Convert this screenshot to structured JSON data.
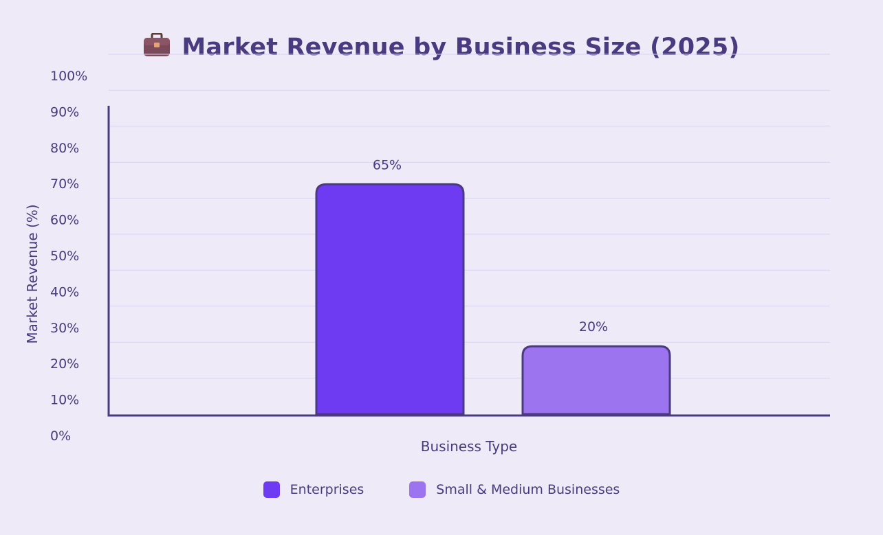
{
  "title_icon": "briefcase-icon",
  "colors": {
    "background": "#efeaf8",
    "text": "#4a3a80",
    "axis": "#4a3a80",
    "grid": "#d8d2f5",
    "bar_outline": "#4a3a80"
  },
  "chart_data": {
    "type": "bar",
    "title": "Market Revenue by Business Size (2025)",
    "xlabel": "Business Type",
    "ylabel": "Market Revenue (%)",
    "ylim": [
      0,
      100
    ],
    "yticks": [
      "0%",
      "10%",
      "20%",
      "30%",
      "40%",
      "50%",
      "60%",
      "70%",
      "80%",
      "90%",
      "100%"
    ],
    "grid": true,
    "legend_position": "bottom",
    "categories": [
      "Enterprises",
      "Small & Medium Businesses"
    ],
    "values": [
      65,
      20
    ],
    "data_labels": [
      "65%",
      "20%"
    ],
    "colors": [
      "#6e3af2",
      "#9d74f0"
    ]
  }
}
